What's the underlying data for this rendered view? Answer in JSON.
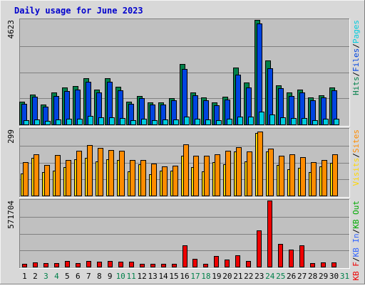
{
  "chart_data": {
    "type": "bar",
    "title": "Daily usage for June 2023",
    "categories": [
      "1",
      "2",
      "3",
      "4",
      "5",
      "6",
      "7",
      "8",
      "9",
      "10",
      "11",
      "12",
      "13",
      "14",
      "15",
      "16",
      "17",
      "18",
      "19",
      "20",
      "21",
      "22",
      "23",
      "24",
      "25",
      "26",
      "27",
      "28",
      "29",
      "30",
      "31"
    ],
    "weekend_days": [
      "3",
      "4",
      "10",
      "11",
      "17",
      "18",
      "24",
      "25",
      "31"
    ],
    "colors": {
      "title": "#0000cc",
      "weekday_label": "#000000",
      "weekend_label": "#00804a",
      "hits": "#00804a",
      "files": "#0044e0",
      "pages": "#00ccdd",
      "visits": "#ffd700",
      "sites": "#ff8c00",
      "kb_in": "#3366ff",
      "kb_out": "#00aa00",
      "kb_f": "#ee0000",
      "panel_bg": "#c0c0c0",
      "outer_bg": "#d8d8d8"
    },
    "panels": [
      {
        "id": "requests",
        "max_label": "4623",
        "ymax": 4623,
        "legend": [
          {
            "label": "Hits",
            "color_key": "hits"
          },
          {
            "sep": "/"
          },
          {
            "label": "Files",
            "color_key": "files"
          },
          {
            "sep": "/"
          },
          {
            "label": "Pages",
            "color_key": "pages"
          }
        ],
        "series": [
          {
            "name": "Hits",
            "color_key": "hits",
            "values": [
              1000,
              1330,
              870,
              1400,
              1620,
              1700,
              2030,
              1540,
              2050,
              1660,
              1000,
              1260,
              960,
              960,
              1170,
              2660,
              1430,
              1200,
              960,
              1230,
              2520,
              1840,
              4623,
              2820,
              1720,
              1400,
              1550,
              1200,
              1300,
              1620,
              0
            ]
          },
          {
            "name": "Files",
            "color_key": "files",
            "values": [
              920,
              1230,
              800,
              1250,
              1470,
              1530,
              1900,
              1430,
              1900,
              1520,
              920,
              1150,
              870,
              870,
              1070,
              2460,
              1300,
              1080,
              860,
              1100,
              2200,
              1650,
              4480,
              2470,
              1600,
              1260,
              1400,
              1080,
              1180,
              1520,
              0
            ]
          },
          {
            "name": "Pages",
            "color_key": "pages",
            "values": [
              200,
              210,
              170,
              210,
              260,
              260,
              380,
              330,
              320,
              270,
              190,
              250,
              200,
              220,
              210,
              360,
              250,
              210,
              200,
              260,
              360,
              350,
              560,
              450,
              320,
              270,
              280,
              200,
              240,
              260,
              0
            ]
          }
        ]
      },
      {
        "id": "visitors",
        "max_label": "299",
        "ymax": 299,
        "legend": [
          {
            "label": "Visits",
            "color_key": "visits"
          },
          {
            "sep": "/"
          },
          {
            "label": "Sites",
            "color_key": "sites"
          }
        ],
        "series": [
          {
            "name": "Visits",
            "color_key": "visits",
            "values": [
              100,
              170,
              105,
              112,
              130,
              165,
              170,
              155,
              165,
              160,
              110,
              140,
              97,
              112,
              112,
              180,
              128,
              110,
              150,
              140,
              200,
              155,
              282,
              200,
              138,
              120,
              125,
              105,
              132,
              148,
              0
            ]
          },
          {
            "name": "Sites",
            "color_key": "sites",
            "values": [
              152,
              188,
              137,
              182,
              162,
              202,
              228,
              215,
              207,
              202,
              162,
              162,
              145,
              132,
              135,
              232,
              180,
              180,
              187,
              202,
              220,
              200,
              290,
              212,
              180,
              187,
              173,
              152,
              162,
              187,
              0
            ]
          }
        ]
      },
      {
        "id": "volume",
        "max_label": "571704",
        "ymax": 571704,
        "legend": [
          {
            "label": "KB F",
            "color_key": "kb_f"
          },
          {
            "sep": "/"
          },
          {
            "label": "KB In",
            "color_key": "kb_in"
          },
          {
            "sep": "/"
          },
          {
            "label": "KB Out",
            "color_key": "kb_out"
          }
        ],
        "series": [
          {
            "name": "KB F",
            "color_key": "kb_f",
            "values": [
              27000,
              36000,
              30000,
              33000,
              47000,
              30000,
              47000,
              42000,
              48000,
              46000,
              46000,
              22000,
              26000,
              24000,
              22000,
              186000,
              66000,
              25000,
              94000,
              64000,
              96000,
              50000,
              314000,
              571704,
              196000,
              150000,
              186000,
              33000,
              34000,
              38000,
              0
            ]
          }
        ]
      }
    ]
  }
}
